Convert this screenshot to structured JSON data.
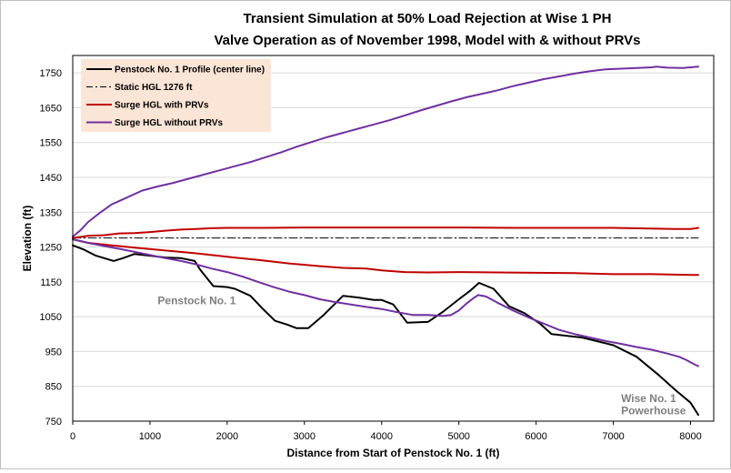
{
  "chart_data": {
    "type": "line",
    "title_lines": [
      "Transient Simulation at 50% Load Rejection at Wise 1 PH",
      "Valve Operation as of November 1998, Model with & without PRVs"
    ],
    "xlabel": "Distance from Start of Penstock No. 1 (ft)",
    "ylabel": "Elevation (ft)",
    "xlim": [
      0,
      8300
    ],
    "ylim": [
      750,
      1800
    ],
    "xticks": [
      0,
      1000,
      2000,
      3000,
      4000,
      5000,
      6000,
      7000,
      8000
    ],
    "yticks": [
      750,
      850,
      950,
      1050,
      1150,
      1250,
      1350,
      1450,
      1550,
      1650,
      1750
    ],
    "grid": "horizontal",
    "legend_position": "top-left",
    "series": [
      {
        "name": "Penstock No. 1 Profile (center line)",
        "color": "#000000",
        "style": "solid",
        "x": [
          0,
          150,
          300,
          530,
          650,
          800,
          1000,
          1200,
          1400,
          1580,
          1650,
          1820,
          2000,
          2100,
          2300,
          2450,
          2620,
          2780,
          2900,
          3050,
          3250,
          3500,
          3700,
          3900,
          4000,
          4150,
          4330,
          4600,
          4800,
          5000,
          5150,
          5260,
          5450,
          5650,
          5850,
          6050,
          6200,
          6600,
          7000,
          7300,
          7600,
          7800,
          8000,
          8100
        ],
        "y": [
          1255,
          1242,
          1225,
          1210,
          1218,
          1230,
          1225,
          1220,
          1218,
          1210,
          1185,
          1138,
          1135,
          1130,
          1110,
          1075,
          1038,
          1027,
          1017,
          1017,
          1055,
          1110,
          1105,
          1098,
          1098,
          1085,
          1033,
          1035,
          1065,
          1100,
          1125,
          1147,
          1130,
          1080,
          1060,
          1030,
          1000,
          990,
          968,
          935,
          880,
          840,
          803,
          768
        ]
      },
      {
        "name": "Static HGL 1276 ft",
        "color": "#000000",
        "style": "dashdot",
        "x": [
          0,
          8100
        ],
        "y": [
          1276,
          1276
        ]
      },
      {
        "name": "Surge HGL with PRVs",
        "color": "#c00000",
        "style": "solid",
        "x": [
          0,
          200,
          400,
          600,
          800,
          1000,
          1200,
          1400,
          1600,
          1800,
          2000,
          2500,
          3000,
          4000,
          5000,
          5700,
          6000,
          7000,
          7800,
          8000,
          8100
        ],
        "y": [
          1276,
          1282,
          1284,
          1289,
          1290,
          1293,
          1297,
          1300,
          1302,
          1304,
          1305,
          1305,
          1306,
          1306,
          1306,
          1305,
          1305,
          1305,
          1302,
          1302,
          1305
        ]
      },
      {
        "name": "Surge HGL with PRVs (lower envelope)",
        "color": "#c00000",
        "style": "solid",
        "x": [
          0,
          200,
          500,
          800,
          1200,
          1600,
          2000,
          2400,
          2800,
          3200,
          3500,
          3800,
          4000,
          4300,
          4600,
          5000,
          5500,
          6000,
          6500,
          7000,
          7500,
          8000,
          8100
        ],
        "y": [
          1272,
          1262,
          1255,
          1248,
          1240,
          1232,
          1222,
          1213,
          1203,
          1195,
          1190,
          1188,
          1183,
          1178,
          1177,
          1178,
          1177,
          1176,
          1175,
          1172,
          1172,
          1170,
          1170
        ]
      },
      {
        "name": "Surge HGL without PRVs",
        "color": "#7030a0",
        "style": "solid",
        "x": [
          0,
          100,
          200,
          350,
          500,
          700,
          900,
          1100,
          1300,
          1500,
          1700,
          1900,
          2100,
          2300,
          2500,
          2700,
          2900,
          3100,
          3300,
          3500,
          3700,
          3900,
          4100,
          4300,
          4500,
          4700,
          4900,
          5100,
          5300,
          5500,
          5700,
          5900,
          6100,
          6300,
          6500,
          6700,
          6900,
          7100,
          7300,
          7500,
          7550,
          7700,
          7900,
          8000,
          8100
        ],
        "y": [
          1280,
          1298,
          1322,
          1348,
          1372,
          1392,
          1412,
          1424,
          1434,
          1446,
          1458,
          1470,
          1482,
          1494,
          1508,
          1522,
          1538,
          1552,
          1566,
          1578,
          1590,
          1602,
          1614,
          1628,
          1642,
          1655,
          1668,
          1680,
          1690,
          1700,
          1712,
          1722,
          1732,
          1740,
          1748,
          1755,
          1760,
          1762,
          1764,
          1766,
          1768,
          1765,
          1764,
          1766,
          1768
        ]
      },
      {
        "name": "Surge HGL without PRVs (lower envelope)",
        "color": "#7030a0",
        "style": "solid",
        "x": [
          0,
          200,
          400,
          600,
          800,
          1000,
          1200,
          1400,
          1600,
          1800,
          2000,
          2200,
          2400,
          2600,
          2800,
          3000,
          3200,
          3400,
          3600,
          3800,
          4000,
          4200,
          4400,
          4600,
          4800,
          4900,
          5000,
          5100,
          5200,
          5250,
          5350,
          5500,
          5700,
          5900,
          6100,
          6300,
          6500,
          6700,
          6900,
          7100,
          7300,
          7500,
          7700,
          7850,
          7950,
          8050,
          8100
        ],
        "y": [
          1272,
          1262,
          1253,
          1245,
          1236,
          1227,
          1218,
          1210,
          1200,
          1188,
          1178,
          1165,
          1150,
          1135,
          1122,
          1112,
          1100,
          1092,
          1085,
          1078,
          1072,
          1063,
          1055,
          1055,
          1052,
          1055,
          1068,
          1088,
          1105,
          1112,
          1108,
          1090,
          1068,
          1048,
          1030,
          1012,
          1000,
          990,
          980,
          972,
          963,
          955,
          944,
          935,
          925,
          913,
          908
        ]
      }
    ],
    "legend_entries": [
      {
        "label": "Penstock No. 1 Profile (center line)",
        "color": "#000000",
        "style": "solid"
      },
      {
        "label": "Static HGL 1276 ft",
        "color": "#000000",
        "style": "dashdot"
      },
      {
        "label": "Surge HGL with PRVs",
        "color": "#c00000",
        "style": "solid"
      },
      {
        "label": "Surge HGL without PRVs",
        "color": "#7030a0",
        "style": "solid"
      }
    ],
    "annotations": [
      {
        "text": "Penstock No. 1",
        "x": 1100,
        "y": 1085
      },
      {
        "text": "Wise No. 1",
        "x": 7100,
        "y": 805
      },
      {
        "text": "Powerhouse",
        "x": 7100,
        "y": 770
      }
    ],
    "legend_fill": "#fbe5d6",
    "grid_color": "#d9d9d9"
  }
}
